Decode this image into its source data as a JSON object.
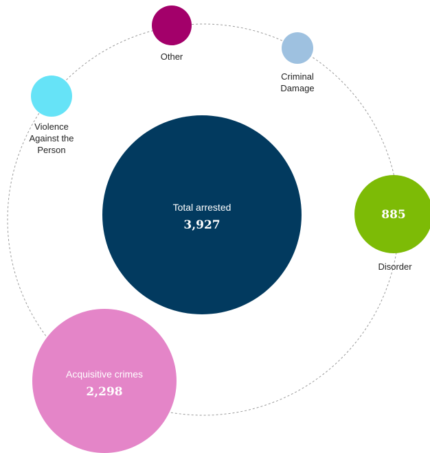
{
  "total": {
    "title": "Total arrested",
    "value": "3,927",
    "color": "#023a5f"
  },
  "categories": {
    "other": {
      "label": "Other",
      "color": "#a3006a"
    },
    "criminal_damage": {
      "label_lines": [
        "Criminal",
        "Damage"
      ],
      "color": "#9ec1e0"
    },
    "violence": {
      "label_lines": [
        "Violence",
        "Against the",
        "Person"
      ],
      "color": "#66e3f7"
    },
    "disorder": {
      "label": "Disorder",
      "value": "885",
      "color": "#7dbb06"
    },
    "acquisitive": {
      "title": "Acquisitive crimes",
      "value": "2,298",
      "color": "#e485c8"
    }
  },
  "ring": {
    "color": "#9a9a9a"
  }
}
